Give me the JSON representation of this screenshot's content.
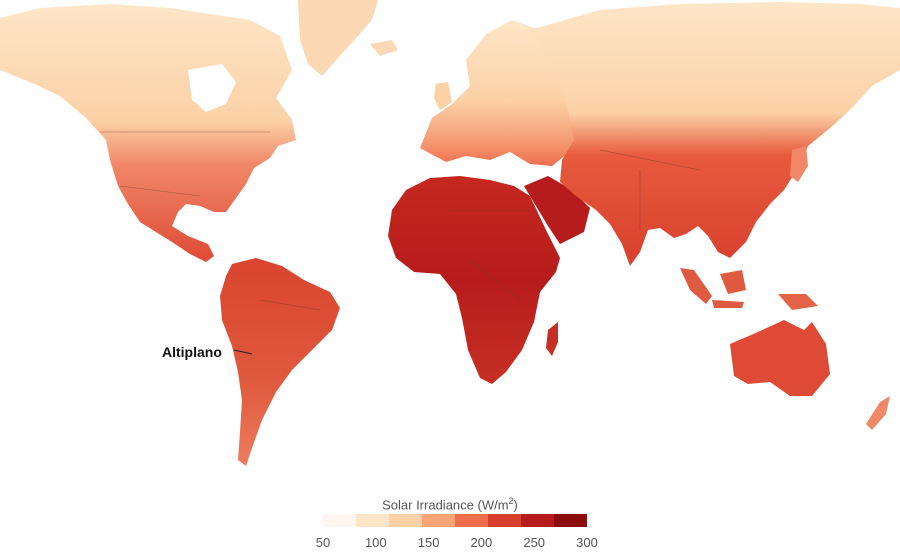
{
  "map": {
    "callout": "Altiplano",
    "colors": {
      "ocean": "#ffffff",
      "c1": "#fde6c8",
      "c2": "#fcd1a6",
      "c3": "#f9a477",
      "c4": "#ee6e4d",
      "c5": "#d7402e",
      "c6": "#b71c1c",
      "border": "#6b3a2a"
    }
  },
  "legend": {
    "title_main": "Solar Irradiance (W/m",
    "title_sup": "2",
    "title_end": ")",
    "ticks": [
      "50",
      "100",
      "150",
      "200",
      "250",
      "300"
    ],
    "colors": [
      "#fef6ef",
      "#fde6c8",
      "#fcd1a6",
      "#f9a477",
      "#ee6e4d",
      "#d7402e",
      "#b71c1c",
      "#8b0d0d"
    ]
  }
}
